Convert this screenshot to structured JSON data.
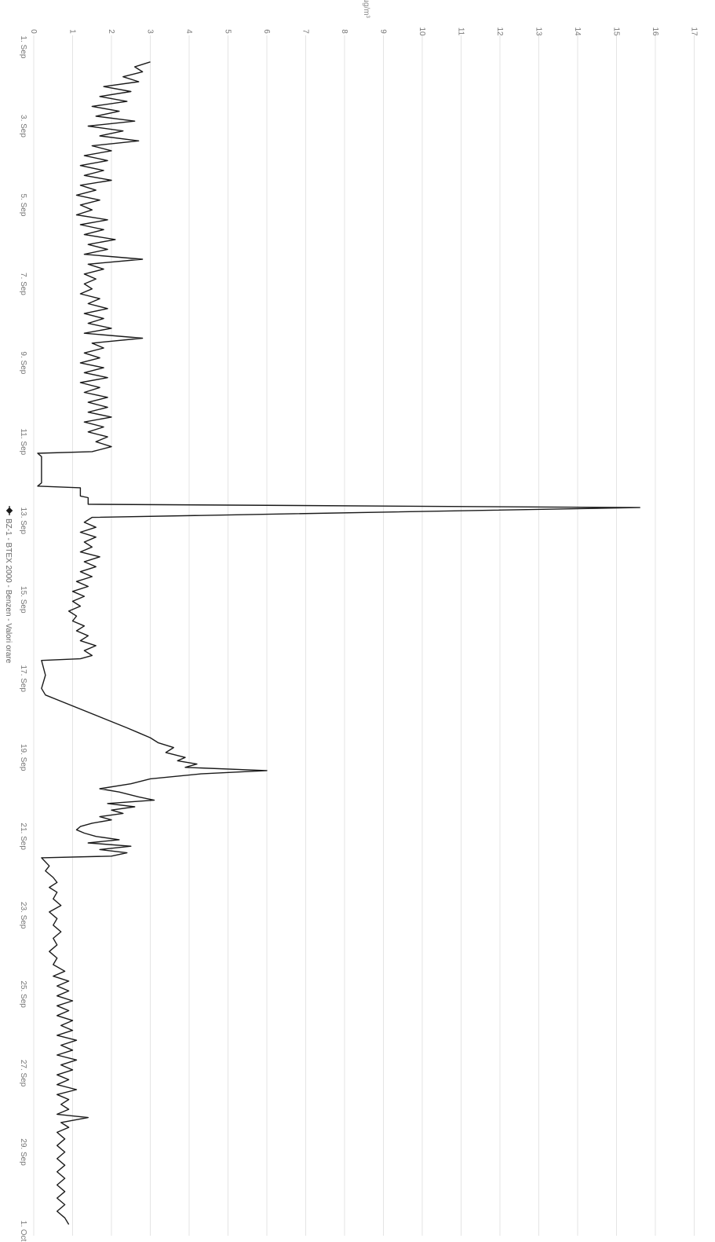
{
  "chart_data": {
    "type": "line",
    "orientation": "rotated-90-clockwise",
    "unit_label": "µg/m³",
    "ylim": [
      0,
      17
    ],
    "y_ticks": [
      "0",
      "1",
      "2",
      "3",
      "4",
      "5",
      "6",
      "7",
      "8",
      "9",
      "10",
      "11",
      "12",
      "13",
      "14",
      "15",
      "16",
      "17"
    ],
    "x_ticks": [
      "1. Sep",
      "3. Sep",
      "5. Sep",
      "7. Sep",
      "9. Sep",
      "11. Sep",
      "13. Sep",
      "15. Sep",
      "17. Sep",
      "19. Sep",
      "21. Sep",
      "23. Sep",
      "25. Sep",
      "27. Sep",
      "29. Sep",
      "1. Oct"
    ],
    "xlim": [
      "2000-09-01",
      "2000-10-01"
    ],
    "grid": true,
    "legend_position": "bottom",
    "series": [
      {
        "name": "BZ-1 - BTEX 2000 - Benzen - Valori orare",
        "color": "#1a1a1a",
        "points": [
          [
            "2000-09-01 09:00",
            3.0
          ],
          [
            "2000-09-01 12:00",
            2.6
          ],
          [
            "2000-09-01 15:00",
            2.8
          ],
          [
            "2000-09-01 18:00",
            2.3
          ],
          [
            "2000-09-01 21:00",
            2.7
          ],
          [
            "2000-09-02 00:00",
            1.8
          ],
          [
            "2000-09-02 03:00",
            2.5
          ],
          [
            "2000-09-02 06:00",
            1.7
          ],
          [
            "2000-09-02 09:00",
            2.4
          ],
          [
            "2000-09-02 12:00",
            1.5
          ],
          [
            "2000-09-02 15:00",
            2.2
          ],
          [
            "2000-09-02 18:00",
            1.6
          ],
          [
            "2000-09-02 21:00",
            2.6
          ],
          [
            "2000-09-03 00:00",
            1.4
          ],
          [
            "2000-09-03 03:00",
            2.3
          ],
          [
            "2000-09-03 06:00",
            1.7
          ],
          [
            "2000-09-03 09:00",
            2.7
          ],
          [
            "2000-09-03 12:00",
            1.5
          ],
          [
            "2000-09-03 15:00",
            2.0
          ],
          [
            "2000-09-03 18:00",
            1.3
          ],
          [
            "2000-09-03 21:00",
            1.9
          ],
          [
            "2000-09-04 00:00",
            1.2
          ],
          [
            "2000-09-04 03:00",
            1.8
          ],
          [
            "2000-09-04 06:00",
            1.3
          ],
          [
            "2000-09-04 09:00",
            2.0
          ],
          [
            "2000-09-04 12:00",
            1.2
          ],
          [
            "2000-09-04 15:00",
            1.6
          ],
          [
            "2000-09-04 18:00",
            1.1
          ],
          [
            "2000-09-04 21:00",
            1.7
          ],
          [
            "2000-09-05 00:00",
            1.2
          ],
          [
            "2000-09-05 03:00",
            1.5
          ],
          [
            "2000-09-05 06:00",
            1.1
          ],
          [
            "2000-09-05 09:00",
            1.9
          ],
          [
            "2000-09-05 12:00",
            1.2
          ],
          [
            "2000-09-05 15:00",
            1.8
          ],
          [
            "2000-09-05 18:00",
            1.3
          ],
          [
            "2000-09-05 21:00",
            2.1
          ],
          [
            "2000-09-06 00:00",
            1.4
          ],
          [
            "2000-09-06 03:00",
            1.9
          ],
          [
            "2000-09-06 06:00",
            1.3
          ],
          [
            "2000-09-06 09:00",
            2.8
          ],
          [
            "2000-09-06 12:00",
            1.4
          ],
          [
            "2000-09-06 15:00",
            1.8
          ],
          [
            "2000-09-06 18:00",
            1.3
          ],
          [
            "2000-09-06 21:00",
            1.6
          ],
          [
            "2000-09-07 00:00",
            1.3
          ],
          [
            "2000-09-07 03:00",
            1.5
          ],
          [
            "2000-09-07 06:00",
            1.2
          ],
          [
            "2000-09-07 09:00",
            1.7
          ],
          [
            "2000-09-07 12:00",
            1.4
          ],
          [
            "2000-09-07 15:00",
            1.9
          ],
          [
            "2000-09-07 18:00",
            1.3
          ],
          [
            "2000-09-07 21:00",
            1.8
          ],
          [
            "2000-09-08 00:00",
            1.4
          ],
          [
            "2000-09-08 03:00",
            2.0
          ],
          [
            "2000-09-08 06:00",
            1.3
          ],
          [
            "2000-09-08 09:00",
            2.8
          ],
          [
            "2000-09-08 12:00",
            1.5
          ],
          [
            "2000-09-08 15:00",
            1.8
          ],
          [
            "2000-09-08 18:00",
            1.3
          ],
          [
            "2000-09-08 21:00",
            1.7
          ],
          [
            "2000-09-09 00:00",
            1.2
          ],
          [
            "2000-09-09 03:00",
            1.8
          ],
          [
            "2000-09-09 06:00",
            1.3
          ],
          [
            "2000-09-09 09:00",
            1.9
          ],
          [
            "2000-09-09 12:00",
            1.2
          ],
          [
            "2000-09-09 15:00",
            1.7
          ],
          [
            "2000-09-09 18:00",
            1.3
          ],
          [
            "2000-09-09 21:00",
            1.9
          ],
          [
            "2000-09-10 00:00",
            1.4
          ],
          [
            "2000-09-10 03:00",
            1.9
          ],
          [
            "2000-09-10 06:00",
            1.4
          ],
          [
            "2000-09-10 09:00",
            2.0
          ],
          [
            "2000-09-10 12:00",
            1.3
          ],
          [
            "2000-09-10 15:00",
            1.8
          ],
          [
            "2000-09-10 18:00",
            1.4
          ],
          [
            "2000-09-10 21:00",
            1.9
          ],
          [
            "2000-09-11 00:00",
            1.6
          ],
          [
            "2000-09-11 03:00",
            2.0
          ],
          [
            "2000-09-11 06:00",
            1.5
          ],
          [
            "2000-09-11 07:00",
            0.1
          ],
          [
            "2000-09-11 09:00",
            0.2
          ],
          [
            "2000-09-12 01:00",
            0.2
          ],
          [
            "2000-09-12 03:00",
            0.1
          ],
          [
            "2000-09-12 04:00",
            1.2
          ],
          [
            "2000-09-12 09:00",
            1.2
          ],
          [
            "2000-09-12 10:00",
            1.4
          ],
          [
            "2000-09-12 14:00",
            1.4
          ],
          [
            "2000-09-12 16:00",
            15.6
          ],
          [
            "2000-09-12 22:00",
            1.5
          ],
          [
            "2000-09-13 01:00",
            1.3
          ],
          [
            "2000-09-13 04:00",
            1.6
          ],
          [
            "2000-09-13 07:00",
            1.2
          ],
          [
            "2000-09-13 10:00",
            1.6
          ],
          [
            "2000-09-13 13:00",
            1.3
          ],
          [
            "2000-09-13 16:00",
            1.5
          ],
          [
            "2000-09-13 19:00",
            1.2
          ],
          [
            "2000-09-13 22:00",
            1.7
          ],
          [
            "2000-09-14 01:00",
            1.3
          ],
          [
            "2000-09-14 04:00",
            1.6
          ],
          [
            "2000-09-14 07:00",
            1.2
          ],
          [
            "2000-09-14 10:00",
            1.5
          ],
          [
            "2000-09-14 13:00",
            1.1
          ],
          [
            "2000-09-14 16:00",
            1.4
          ],
          [
            "2000-09-14 19:00",
            1.0
          ],
          [
            "2000-09-14 22:00",
            1.3
          ],
          [
            "2000-09-15 01:00",
            1.0
          ],
          [
            "2000-09-15 04:00",
            1.2
          ],
          [
            "2000-09-15 07:00",
            0.9
          ],
          [
            "2000-09-15 10:00",
            1.1
          ],
          [
            "2000-09-15 13:00",
            1.0
          ],
          [
            "2000-09-15 16:00",
            1.3
          ],
          [
            "2000-09-15 19:00",
            1.1
          ],
          [
            "2000-09-15 22:00",
            1.4
          ],
          [
            "2000-09-16 01:00",
            1.2
          ],
          [
            "2000-09-16 04:00",
            1.6
          ],
          [
            "2000-09-16 07:00",
            1.3
          ],
          [
            "2000-09-16 10:00",
            1.5
          ],
          [
            "2000-09-16 12:00",
            1.2
          ],
          [
            "2000-09-16 13:00",
            0.2
          ],
          [
            "2000-09-16 22:00",
            0.3
          ],
          [
            "2000-09-17 06:00",
            0.2
          ],
          [
            "2000-09-17 10:00",
            0.3
          ],
          [
            "2000-09-18 06:00",
            2.4
          ],
          [
            "2000-09-18 09:00",
            2.7
          ],
          [
            "2000-09-18 12:00",
            3.0
          ],
          [
            "2000-09-18 15:00",
            3.2
          ],
          [
            "2000-09-18 18:00",
            3.6
          ],
          [
            "2000-09-18 21:00",
            3.4
          ],
          [
            "2000-09-19 00:00",
            3.9
          ],
          [
            "2000-09-19 02:00",
            3.7
          ],
          [
            "2000-09-19 04:00",
            4.2
          ],
          [
            "2000-09-19 06:00",
            3.9
          ],
          [
            "2000-09-19 08:00",
            6.0
          ],
          [
            "2000-09-19 10:00",
            4.3
          ],
          [
            "2000-09-19 13:00",
            3.0
          ],
          [
            "2000-09-19 16:00",
            2.5
          ],
          [
            "2000-09-19 19:00",
            1.7
          ],
          [
            "2000-09-19 21:00",
            2.2
          ],
          [
            "2000-09-20 00:00",
            2.7
          ],
          [
            "2000-09-20 02:00",
            3.1
          ],
          [
            "2000-09-20 04:00",
            1.9
          ],
          [
            "2000-09-20 06:00",
            2.6
          ],
          [
            "2000-09-20 08:00",
            2.0
          ],
          [
            "2000-09-20 10:00",
            2.3
          ],
          [
            "2000-09-20 12:00",
            1.7
          ],
          [
            "2000-09-20 14:00",
            2.0
          ],
          [
            "2000-09-20 16:00",
            1.5
          ],
          [
            "2000-09-20 18:00",
            1.2
          ],
          [
            "2000-09-20 20:00",
            1.1
          ],
          [
            "2000-09-20 22:00",
            1.3
          ],
          [
            "2000-09-21 00:00",
            1.6
          ],
          [
            "2000-09-21 02:00",
            2.2
          ],
          [
            "2000-09-21 04:00",
            1.4
          ],
          [
            "2000-09-21 06:00",
            2.5
          ],
          [
            "2000-09-21 08:00",
            1.7
          ],
          [
            "2000-09-21 10:00",
            2.4
          ],
          [
            "2000-09-21 12:00",
            2.0
          ],
          [
            "2000-09-21 13:00",
            0.2
          ],
          [
            "2000-09-21 18:00",
            0.4
          ],
          [
            "2000-09-21 21:00",
            0.3
          ],
          [
            "2000-09-22 01:00",
            0.5
          ],
          [
            "2000-09-22 04:00",
            0.6
          ],
          [
            "2000-09-22 07:00",
            0.4
          ],
          [
            "2000-09-22 10:00",
            0.6
          ],
          [
            "2000-09-22 14:00",
            0.5
          ],
          [
            "2000-09-22 18:00",
            0.7
          ],
          [
            "2000-09-22 22:00",
            0.4
          ],
          [
            "2000-09-23 02:00",
            0.6
          ],
          [
            "2000-09-23 06:00",
            0.5
          ],
          [
            "2000-09-23 10:00",
            0.7
          ],
          [
            "2000-09-23 14:00",
            0.5
          ],
          [
            "2000-09-23 18:00",
            0.6
          ],
          [
            "2000-09-23 22:00",
            0.4
          ],
          [
            "2000-09-24 02:00",
            0.6
          ],
          [
            "2000-09-24 06:00",
            0.5
          ],
          [
            "2000-09-24 10:00",
            0.8
          ],
          [
            "2000-09-24 13:00",
            0.5
          ],
          [
            "2000-09-24 16:00",
            0.9
          ],
          [
            "2000-09-24 19:00",
            0.6
          ],
          [
            "2000-09-24 22:00",
            0.9
          ],
          [
            "2000-09-25 01:00",
            0.6
          ],
          [
            "2000-09-25 04:00",
            1.0
          ],
          [
            "2000-09-25 07:00",
            0.6
          ],
          [
            "2000-09-25 10:00",
            0.9
          ],
          [
            "2000-09-25 13:00",
            0.6
          ],
          [
            "2000-09-25 16:00",
            1.0
          ],
          [
            "2000-09-25 19:00",
            0.7
          ],
          [
            "2000-09-25 22:00",
            1.0
          ],
          [
            "2000-09-26 01:00",
            0.6
          ],
          [
            "2000-09-26 04:00",
            1.1
          ],
          [
            "2000-09-26 07:00",
            0.7
          ],
          [
            "2000-09-26 10:00",
            1.0
          ],
          [
            "2000-09-26 13:00",
            0.6
          ],
          [
            "2000-09-26 16:00",
            1.1
          ],
          [
            "2000-09-26 19:00",
            0.7
          ],
          [
            "2000-09-26 22:00",
            1.0
          ],
          [
            "2000-09-27 01:00",
            0.6
          ],
          [
            "2000-09-27 04:00",
            0.9
          ],
          [
            "2000-09-27 07:00",
            0.6
          ],
          [
            "2000-09-27 10:00",
            1.1
          ],
          [
            "2000-09-27 13:00",
            0.6
          ],
          [
            "2000-09-27 16:00",
            0.9
          ],
          [
            "2000-09-27 19:00",
            0.7
          ],
          [
            "2000-09-27 22:00",
            0.9
          ],
          [
            "2000-09-28 01:00",
            0.6
          ],
          [
            "2000-09-28 03:00",
            1.4
          ],
          [
            "2000-09-28 06:00",
            0.7
          ],
          [
            "2000-09-28 09:00",
            0.9
          ],
          [
            "2000-09-28 12:00",
            0.6
          ],
          [
            "2000-09-28 16:00",
            0.8
          ],
          [
            "2000-09-28 20:00",
            0.6
          ],
          [
            "2000-09-29 00:00",
            0.8
          ],
          [
            "2000-09-29 04:00",
            0.6
          ],
          [
            "2000-09-29 08:00",
            0.8
          ],
          [
            "2000-09-29 12:00",
            0.6
          ],
          [
            "2000-09-29 16:00",
            0.8
          ],
          [
            "2000-09-29 20:00",
            0.6
          ],
          [
            "2000-09-30 00:00",
            0.8
          ],
          [
            "2000-09-30 04:00",
            0.6
          ],
          [
            "2000-09-30 08:00",
            0.8
          ],
          [
            "2000-09-30 12:00",
            0.6
          ],
          [
            "2000-09-30 16:00",
            0.8
          ],
          [
            "2000-09-30 20:00",
            0.9
          ]
        ]
      }
    ]
  }
}
